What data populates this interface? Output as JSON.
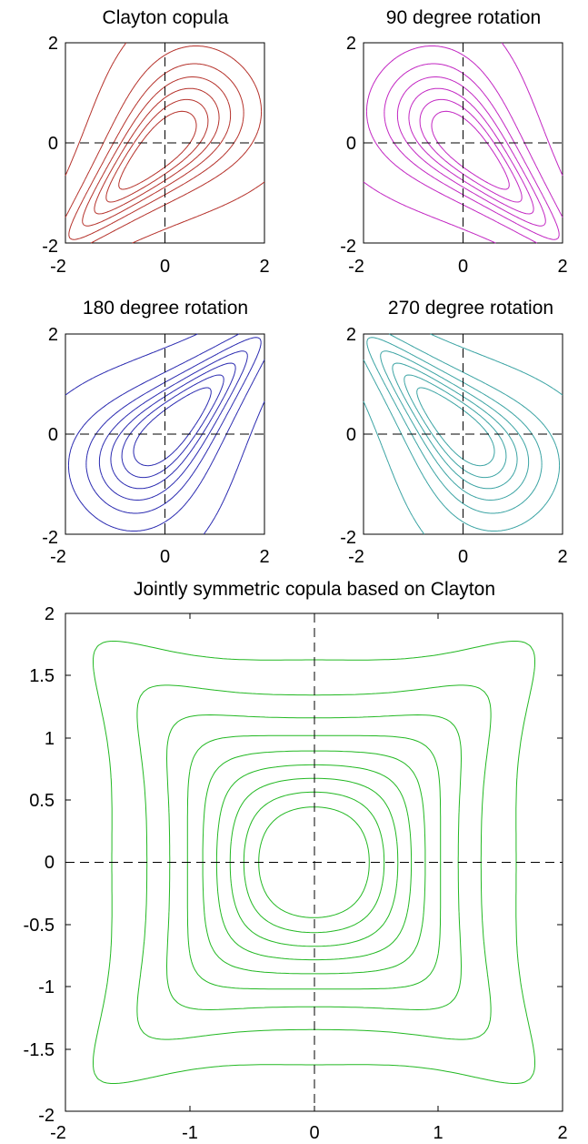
{
  "chart_data": [
    {
      "type": "contour",
      "title": "Clayton copula",
      "xlim": [
        -2,
        2
      ],
      "ylim": [
        -2,
        2
      ],
      "xticks": [
        "-2",
        "0",
        "2"
      ],
      "yticks": [
        "-2",
        "0",
        "2"
      ],
      "reference_lines": {
        "x": 0,
        "y": 0,
        "style": "dashed"
      },
      "color": "#b5312a",
      "copula": "clayton",
      "rotation_degrees": 0,
      "contour_levels": 7
    },
    {
      "type": "contour",
      "title": "90 degree rotation",
      "xlim": [
        -2,
        2
      ],
      "ylim": [
        -2,
        2
      ],
      "xticks": [
        "-2",
        "0",
        "2"
      ],
      "yticks": [
        "-2",
        "0",
        "2"
      ],
      "reference_lines": {
        "x": 0,
        "y": 0,
        "style": "dashed"
      },
      "color": "#c226c2",
      "copula": "clayton",
      "rotation_degrees": 90,
      "contour_levels": 7
    },
    {
      "type": "contour",
      "title": "180 degree rotation",
      "xlim": [
        -2,
        2
      ],
      "ylim": [
        -2,
        2
      ],
      "xticks": [
        "-2",
        "0",
        "2"
      ],
      "yticks": [
        "-2",
        "0",
        "2"
      ],
      "reference_lines": {
        "x": 0,
        "y": 0,
        "style": "dashed"
      },
      "color": "#2a2ab0",
      "copula": "clayton",
      "rotation_degrees": 180,
      "contour_levels": 7
    },
    {
      "type": "contour",
      "title": "270 degree rotation",
      "xlim": [
        -2,
        2
      ],
      "ylim": [
        -2,
        2
      ],
      "xticks": [
        "-2",
        "0",
        "2"
      ],
      "yticks": [
        "-2",
        "0",
        "2"
      ],
      "reference_lines": {
        "x": 0,
        "y": 0,
        "style": "dashed"
      },
      "color": "#3aa3a3",
      "copula": "clayton",
      "rotation_degrees": 270,
      "contour_levels": 7
    },
    {
      "type": "contour",
      "title": "Jointly symmetric copula based on Clayton",
      "xlim": [
        -2,
        2
      ],
      "ylim": [
        -2,
        2
      ],
      "xticks": [
        "-2",
        "-1",
        "0",
        "1",
        "2"
      ],
      "yticks": [
        "-2",
        "-1.5",
        "-1",
        "-0.5",
        "0",
        "0.5",
        "1",
        "1.5",
        "2"
      ],
      "reference_lines": {
        "x": 0,
        "y": 0,
        "style": "dashed"
      },
      "color": "#22b822",
      "copula": "jointly symmetric clayton",
      "contour_levels": 10
    }
  ]
}
